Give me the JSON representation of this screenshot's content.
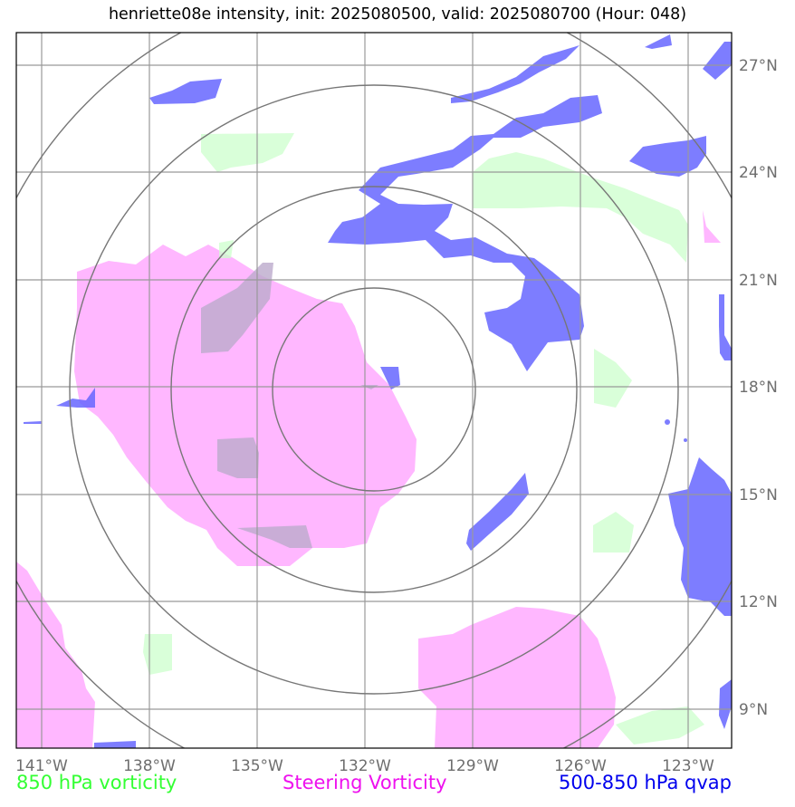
{
  "title": "henriette08e intensity, init: 2025080500, valid: 2025080700 (Hour: 048)",
  "map": {
    "lon_labels": [
      "141°W",
      "138°W",
      "135°W",
      "132°W",
      "129°W",
      "126°W",
      "123°W"
    ],
    "lat_labels": [
      "27°N",
      "24°N",
      "21°N",
      "18°N",
      "15°N",
      "12°N",
      "9°N"
    ],
    "center": {
      "lon": -131.8,
      "lat": 18.0
    },
    "colors": {
      "vort850": "#ccffcc",
      "steering": "#ffaaff",
      "qvap": "#6666ff",
      "grid": "#999999",
      "rings": "#777777"
    }
  },
  "legend": {
    "vort850": "850 hPa vorticity",
    "steering": "Steering Vorticity",
    "qvap": "500-850 hPa qvap"
  }
}
